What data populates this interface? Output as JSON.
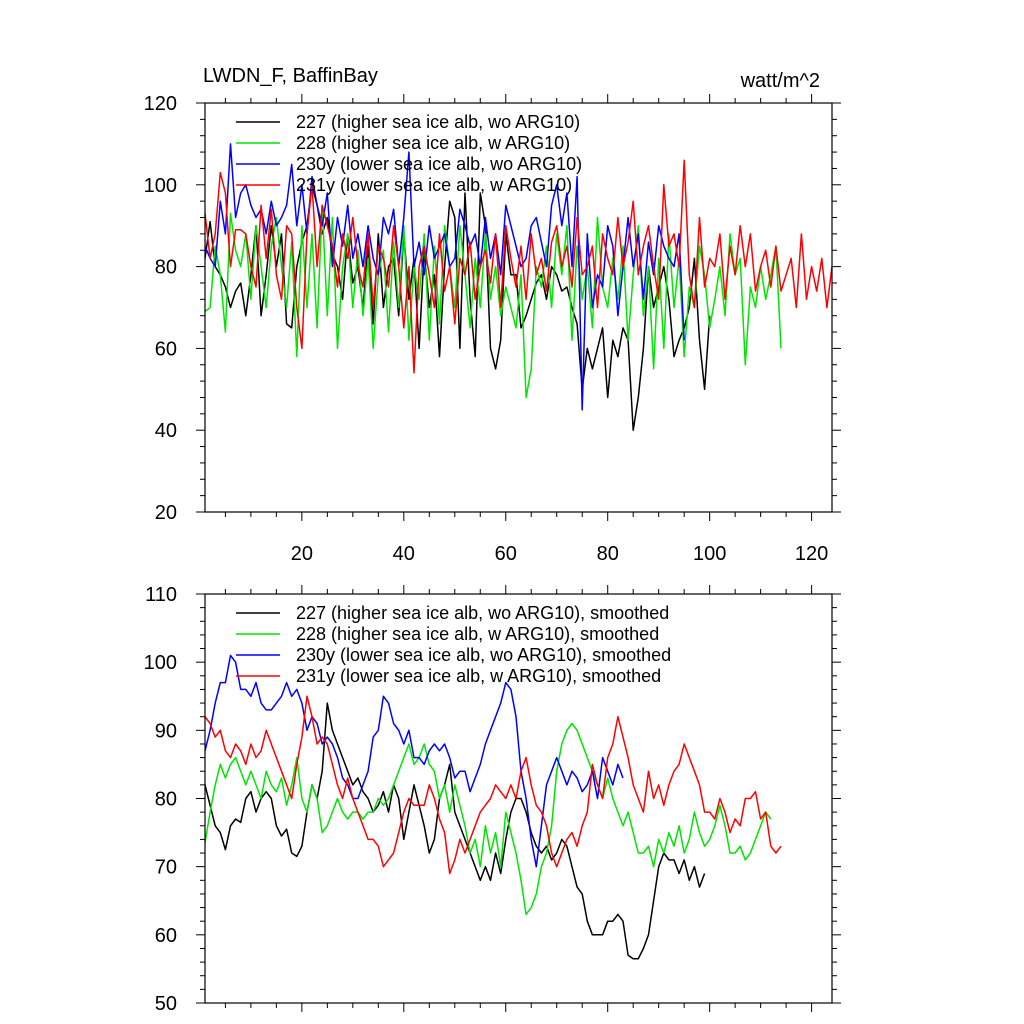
{
  "chart_data": [
    {
      "type": "line",
      "title": "LWDN_F, BaffinBay",
      "units": "watt/m^2",
      "xlabel": "",
      "ylabel": "",
      "xlim": [
        1,
        124
      ],
      "ylim": [
        20,
        120
      ],
      "x_ticks": [
        20,
        40,
        60,
        80,
        100,
        120
      ],
      "x_tick_labels_shown": true,
      "y_ticks": [
        20,
        40,
        60,
        80,
        100,
        120
      ],
      "y_minor_step": 4,
      "legend_position": "top-left",
      "series": [
        {
          "name": "227 (higher sea ice alb, wo ARG10)",
          "color": "#000000",
          "x_start": 1,
          "values": [
            82,
            91,
            80,
            78,
            75,
            70,
            74,
            76,
            68,
            78,
            90,
            68,
            78,
            90,
            80,
            88,
            66,
            65,
            80,
            86,
            90,
            100,
            95,
            88,
            92,
            83,
            80,
            72,
            88,
            76,
            80,
            70,
            85,
            66,
            88,
            70,
            80,
            82,
            68,
            88,
            72,
            82,
            60,
            84,
            70,
            78,
            58,
            80,
            96,
            92,
            60,
            98,
            72,
            58,
            98,
            90,
            60,
            55,
            62,
            88,
            78,
            78,
            65,
            68,
            72,
            76,
            78,
            72,
            80,
            78,
            74,
            75,
            70,
            66,
            50,
            60,
            55,
            60,
            65,
            48,
            62,
            58,
            65,
            62,
            40,
            48,
            60,
            80,
            70,
            75,
            80,
            72,
            58,
            62,
            65,
            70,
            82,
            62,
            50,
            68
          ]
        },
        {
          "name": "228 (higher sea ice alb, w ARG10)",
          "color": "#00e600",
          "x_start": 1,
          "values": [
            69,
            70,
            85,
            78,
            64,
            93,
            84,
            80,
            88,
            72,
            90,
            80,
            70,
            85,
            92,
            80,
            70,
            86,
            58,
            90,
            70,
            88,
            65,
            95,
            68,
            92,
            60,
            80,
            88,
            70,
            84,
            68,
            82,
            60,
            78,
            84,
            64,
            86,
            70,
            90,
            62,
            80,
            72,
            88,
            62,
            85,
            66,
            90,
            80,
            70,
            90,
            78,
            65,
            82,
            70,
            88,
            72,
            80,
            68,
            75,
            70,
            65,
            78,
            48,
            55,
            80,
            75,
            85,
            70,
            88,
            78,
            90,
            62,
            85,
            72,
            80,
            65,
            92,
            75,
            70,
            82,
            72,
            85,
            62,
            78,
            90,
            68,
            80,
            55,
            82,
            60,
            88,
            70,
            82,
            58,
            75,
            70,
            85,
            78,
            65,
            72,
            80,
            68,
            88,
            78,
            82,
            56,
            75,
            70,
            80,
            72,
            78,
            85,
            60
          ]
        },
        {
          "name": "230y (lower sea ice alb, wo ARG10)",
          "color": "#0000ff",
          "x_start": 1,
          "values": [
            85,
            82,
            80,
            96,
            88,
            110,
            92,
            98,
            100,
            95,
            92,
            94,
            88,
            96,
            90,
            92,
            95,
            105,
            90,
            100,
            88,
            102,
            95,
            90,
            98,
            80,
            92,
            85,
            95,
            82,
            88,
            80,
            90,
            82,
            78,
            92,
            88,
            94,
            80,
            92,
            108,
            80,
            86,
            78,
            90,
            82,
            85,
            88,
            80,
            82,
            94,
            90,
            85,
            88,
            80,
            92,
            82,
            88,
            78,
            95,
            90,
            85,
            80,
            82,
            90,
            92,
            86,
            80,
            95,
            100,
            90,
            98,
            80,
            102,
            45,
            88,
            70,
            78,
            75,
            90,
            85,
            68,
            80,
            92,
            80,
            88,
            72,
            86,
            78,
            90,
            85,
            82,
            80,
            88,
            62
          ]
        },
        {
          "name": "231y (lower sea ice alb, w ARG10)",
          "color": "#ff0000",
          "x_start": 1,
          "values": [
            93,
            82,
            88,
            103,
            98,
            80,
            89,
            89,
            88,
            80,
            75,
            95,
            82,
            94,
            78,
            72,
            90,
            88,
            70,
            60,
            88,
            100,
            80,
            95,
            90,
            85,
            75,
            88,
            82,
            92,
            80,
            75,
            88,
            70,
            85,
            82,
            75,
            90,
            80,
            65,
            80,
            54,
            80,
            85,
            78,
            70,
            88,
            74,
            80,
            66,
            82,
            78,
            86,
            72,
            80,
            84,
            76,
            88,
            70,
            90,
            82,
            75,
            85,
            72,
            88,
            78,
            82,
            74,
            86,
            90,
            80,
            85,
            75,
            92,
            78,
            80,
            85,
            70,
            88,
            82,
            78,
            92,
            80,
            86,
            96,
            78,
            85,
            90,
            80,
            72,
            100,
            85,
            88,
            80,
            106,
            78,
            70,
            92,
            75,
            82,
            80,
            88,
            72,
            85,
            78,
            90,
            80,
            88,
            74,
            80,
            84,
            75,
            85,
            74,
            78,
            82,
            70,
            88,
            72,
            80,
            74,
            82,
            70,
            80
          ]
        }
      ]
    },
    {
      "type": "line",
      "title": "",
      "units": "",
      "xlabel": "",
      "ylabel": "",
      "xlim": [
        1,
        124
      ],
      "ylim": [
        50,
        110
      ],
      "x_ticks": [
        20,
        40,
        60,
        80,
        100,
        120
      ],
      "x_tick_labels_shown": false,
      "y_ticks": [
        50,
        60,
        70,
        80,
        90,
        100,
        110
      ],
      "y_minor_step": 2,
      "legend_position": "top-left",
      "series": [
        {
          "name": "227 (higher sea ice alb, wo ARG10), smoothed",
          "color": "#000000",
          "x_start": 1,
          "values": [
            82,
            79,
            76,
            75,
            72.5,
            76,
            77,
            76.5,
            80,
            81,
            78,
            80,
            81,
            80,
            76,
            74.5,
            75.5,
            72,
            71.5,
            73,
            78,
            82,
            80,
            84,
            94,
            90,
            88,
            86,
            84,
            82,
            83,
            81,
            80,
            78,
            79,
            81,
            78,
            82,
            80,
            74,
            78,
            82,
            79,
            76,
            72,
            74,
            80,
            82,
            85,
            78,
            76,
            74,
            72,
            70,
            68,
            70,
            68,
            72,
            69,
            74,
            78,
            80,
            80,
            78,
            75,
            73,
            72,
            73,
            71,
            72,
            74,
            73,
            70,
            67,
            66,
            62,
            60,
            60,
            60,
            62,
            62,
            63,
            62,
            57,
            56.5,
            56.5,
            58,
            60,
            65,
            70,
            72,
            71,
            71,
            69,
            71,
            68,
            70,
            67,
            69
          ]
        },
        {
          "name": "228 (higher sea ice alb, w ARG10), smoothed",
          "color": "#00e600",
          "x_start": 1,
          "values": [
            73.5,
            78,
            82,
            85,
            83,
            85,
            86,
            84,
            82,
            84,
            82,
            80,
            84,
            82,
            81,
            83,
            79,
            82,
            86,
            80,
            78,
            82,
            80,
            75,
            76,
            78,
            80,
            78,
            77,
            78,
            78,
            77,
            78,
            78,
            80,
            79,
            80,
            82,
            84,
            86,
            88,
            85,
            86,
            88,
            85,
            84,
            80,
            82,
            78,
            82,
            79,
            76,
            72,
            74,
            70,
            76,
            72,
            75,
            70,
            78,
            75,
            72,
            68,
            63,
            64,
            66,
            70,
            72,
            76,
            84,
            88,
            90,
            91,
            90,
            88,
            86,
            84,
            82,
            80,
            83,
            80,
            78,
            76,
            78,
            75,
            72,
            72,
            73,
            70,
            74,
            72,
            75,
            73,
            76,
            72,
            74,
            78,
            75,
            73,
            74,
            76,
            79,
            76,
            72,
            72,
            73,
            71,
            72,
            74,
            76,
            78,
            77
          ]
        },
        {
          "name": "230y (lower sea ice alb, wo ARG10), smoothed",
          "color": "#0000ff",
          "x_start": 1,
          "values": [
            87,
            90,
            94,
            97,
            97,
            101,
            100,
            96,
            96,
            95,
            97,
            94,
            93,
            93,
            94,
            95,
            97,
            95,
            96,
            94,
            90,
            92,
            91,
            88,
            89,
            88,
            86,
            83,
            82,
            80,
            80,
            82,
            84,
            89,
            90,
            95,
            94,
            91,
            90,
            88,
            90,
            86,
            86,
            85,
            87,
            88,
            87,
            88,
            86,
            83,
            84,
            84,
            81,
            83,
            85,
            88,
            90,
            92,
            94,
            97,
            96,
            92,
            84,
            80,
            74,
            70,
            76,
            82,
            84,
            86,
            84,
            82,
            84,
            83,
            81,
            82,
            84,
            80,
            86,
            84,
            82,
            85,
            83
          ]
        },
        {
          "name": "231y (lower sea ice alb, w ARG10), smoothed",
          "color": "#ff0000",
          "x_start": 1,
          "values": [
            92,
            91,
            89,
            90,
            87,
            86,
            88,
            87,
            85,
            88,
            86,
            87,
            90,
            88,
            86,
            84,
            82,
            80,
            85,
            89,
            95,
            92,
            88,
            89,
            88,
            85,
            82,
            80,
            83,
            80,
            78,
            76,
            74,
            74,
            73,
            70,
            71,
            72,
            75,
            78,
            80,
            79,
            79,
            79,
            82,
            80,
            77,
            75,
            69,
            71,
            74,
            72,
            74,
            76,
            78,
            79,
            80,
            82,
            81,
            80,
            82,
            80,
            84,
            86,
            82,
            79,
            78,
            76,
            72,
            70,
            72,
            74,
            75,
            73,
            76,
            78,
            85,
            82,
            80,
            86,
            88,
            92,
            89,
            86,
            82,
            80,
            78,
            84,
            80,
            82,
            79,
            82,
            84,
            85,
            88,
            86,
            84,
            82,
            78,
            78,
            77,
            80,
            78,
            75,
            77,
            76,
            80,
            80,
            81,
            77,
            78,
            73,
            72,
            73
          ]
        }
      ]
    }
  ]
}
